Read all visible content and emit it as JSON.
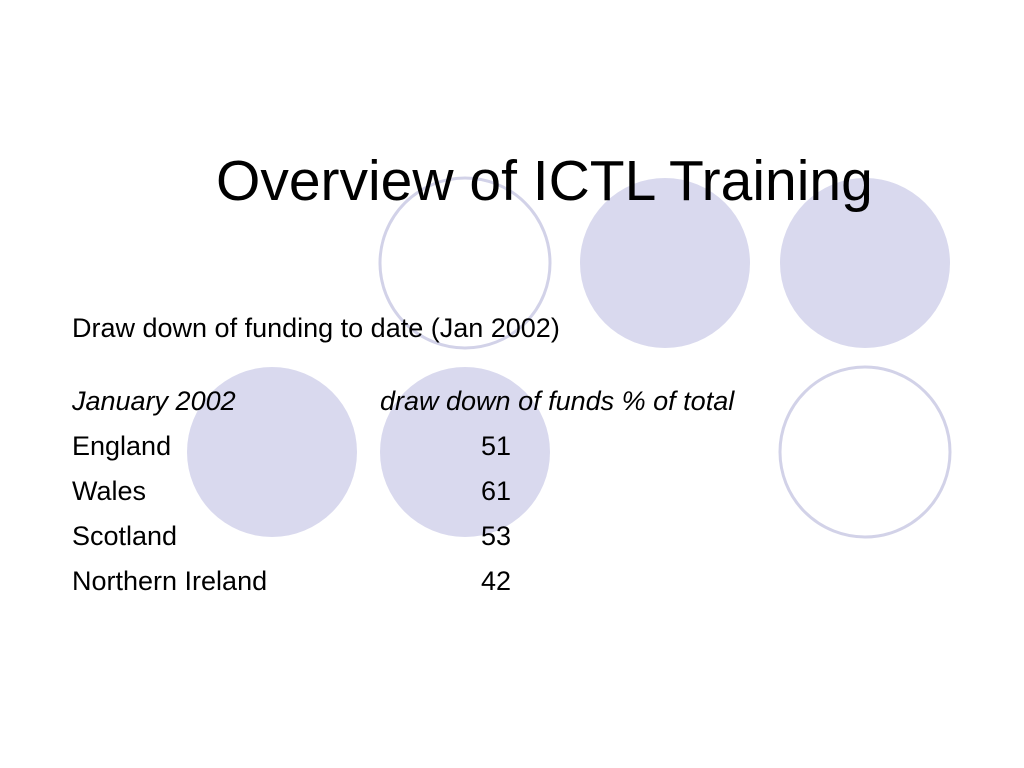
{
  "title": "Overview of ICTL Training",
  "subtitle": "Draw down of funding to date (Jan 2002)",
  "table": {
    "header": [
      "January 2002",
      "draw down of funds % of total"
    ],
    "rows": [
      [
        "England",
        51
      ],
      [
        "Wales",
        61
      ],
      [
        "Scotland",
        53
      ],
      [
        "Northern Ireland",
        42
      ]
    ]
  }
}
